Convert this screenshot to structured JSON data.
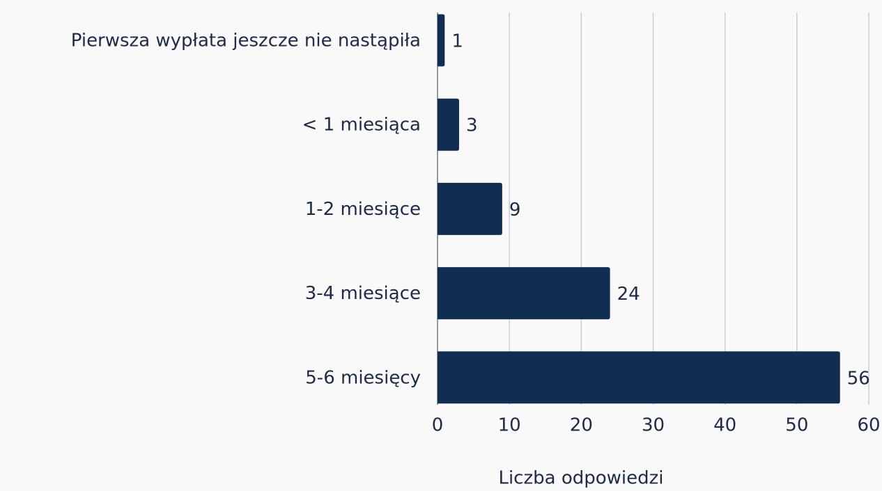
{
  "chart_data": {
    "type": "bar",
    "orientation": "horizontal",
    "categories": [
      "Pierwsza wypłata jeszcze nie nastąpiła",
      "< 1 miesiąca",
      "1-2 miesiące",
      "3-4 miesiące",
      "5-6 miesięcy"
    ],
    "values": [
      1,
      3,
      9,
      24,
      56
    ],
    "color": "#112d52",
    "xlabel": "Liczba odpowiedzi",
    "xlim": [
      0,
      60
    ],
    "xticks": [
      0,
      10,
      20,
      30,
      40,
      50,
      60
    ],
    "grid": true
  }
}
